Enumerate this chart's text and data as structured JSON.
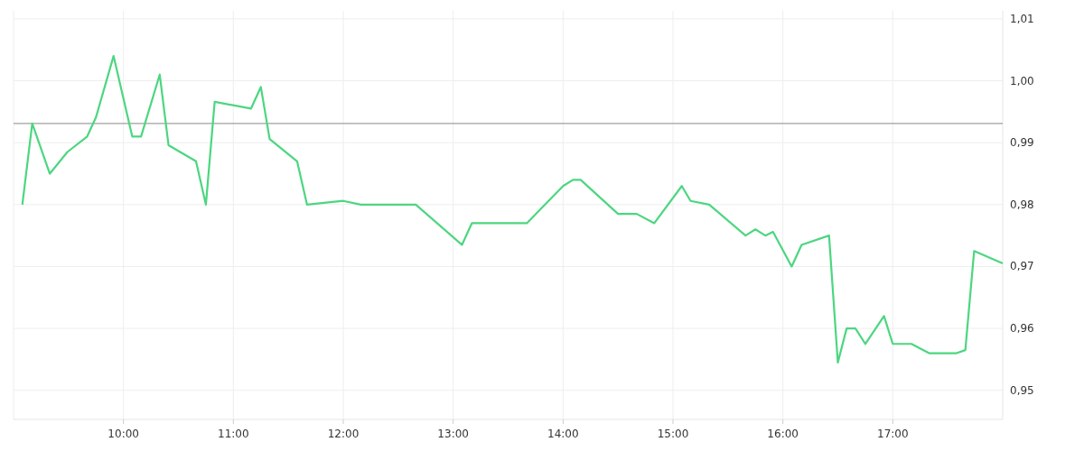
{
  "chart_data": {
    "type": "line",
    "x": [
      9.08,
      9.17,
      9.33,
      9.49,
      9.67,
      9.75,
      9.91,
      10.08,
      10.16,
      10.33,
      10.41,
      10.66,
      10.75,
      10.83,
      11.16,
      11.25,
      11.33,
      11.58,
      11.67,
      12.0,
      12.16,
      12.66,
      13.08,
      13.17,
      13.67,
      14.0,
      14.09,
      14.16,
      14.5,
      14.67,
      14.83,
      15.08,
      15.16,
      15.33,
      15.66,
      15.75,
      15.84,
      15.91,
      16.08,
      16.17,
      16.42,
      16.5,
      16.58,
      16.66,
      16.75,
      16.92,
      17.0,
      17.17,
      17.33,
      17.58,
      17.66,
      17.74,
      18.0
    ],
    "series": [
      {
        "color": "#4cd680",
        "values": [
          0.98,
          0.9931,
          0.985,
          0.9885,
          0.991,
          0.9941,
          1.004,
          0.991,
          0.991,
          1.001,
          0.9896,
          0.987,
          0.98,
          0.9966,
          0.9955,
          0.999,
          0.9906,
          0.987,
          0.98,
          0.9806,
          0.98,
          0.98,
          0.9735,
          0.977,
          0.977,
          0.983,
          0.984,
          0.984,
          0.9785,
          0.9785,
          0.977,
          0.983,
          0.9806,
          0.98,
          0.975,
          0.976,
          0.975,
          0.9756,
          0.97,
          0.9735,
          0.975,
          0.9545,
          0.96,
          0.96,
          0.9575,
          0.962,
          0.9575,
          0.9575,
          0.956,
          0.956,
          0.9565,
          0.9725,
          0.9705
        ]
      }
    ],
    "xlim": [
      9,
      18
    ],
    "xticks": [
      {
        "value": 10,
        "label": "10:00"
      },
      {
        "value": 11,
        "label": "11:00"
      },
      {
        "value": 12,
        "label": "12:00"
      },
      {
        "value": 13,
        "label": "13:00"
      },
      {
        "value": 14,
        "label": "14:00"
      },
      {
        "value": 15,
        "label": "15:00"
      },
      {
        "value": 16,
        "label": "16:00"
      },
      {
        "value": 17,
        "label": "17:00"
      }
    ],
    "ylim": [
      0.9453,
      1.0113
    ],
    "yticks": [
      {
        "value": 0.95,
        "label": "0,95"
      },
      {
        "value": 0.96,
        "label": "0,96"
      },
      {
        "value": 0.97,
        "label": "0,97"
      },
      {
        "value": 0.98,
        "label": "0,98"
      },
      {
        "value": 0.99,
        "label": "0,99"
      },
      {
        "value": 1.0,
        "label": "1,00"
      },
      {
        "value": 1.01,
        "label": "1,01"
      }
    ],
    "grid": true,
    "ref_lines": [
      {
        "axis": "y",
        "value": 0.9931,
        "color": "#888888"
      }
    ]
  }
}
